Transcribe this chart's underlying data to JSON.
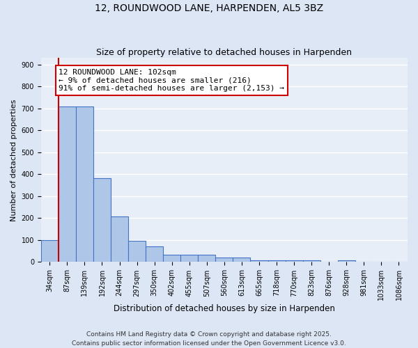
{
  "title1": "12, ROUNDWOOD LANE, HARPENDEN, AL5 3BZ",
  "title2": "Size of property relative to detached houses in Harpenden",
  "xlabel": "Distribution of detached houses by size in Harpenden",
  "ylabel": "Number of detached properties",
  "bar_labels": [
    "34sqm",
    "87sqm",
    "139sqm",
    "192sqm",
    "244sqm",
    "297sqm",
    "350sqm",
    "402sqm",
    "455sqm",
    "507sqm",
    "560sqm",
    "613sqm",
    "665sqm",
    "718sqm",
    "770sqm",
    "823sqm",
    "876sqm",
    "928sqm",
    "981sqm",
    "1033sqm",
    "1086sqm"
  ],
  "bar_values": [
    100,
    710,
    710,
    383,
    207,
    98,
    70,
    32,
    32,
    32,
    20,
    20,
    8,
    8,
    8,
    8,
    0,
    7,
    0,
    0,
    0
  ],
  "bar_color": "#aec6e8",
  "bar_edge_color": "#4472c4",
  "bar_edge_width": 0.8,
  "red_line_x": 0.5,
  "red_line_color": "#cc0000",
  "annotation_text": "12 ROUNDWOOD LANE: 102sqm\n← 9% of detached houses are smaller (216)\n91% of semi-detached houses are larger (2,153) →",
  "annotation_box_color": "#ffffff",
  "annotation_box_edge_color": "#cc0000",
  "annotation_fontsize": 8,
  "ylim": [
    0,
    930
  ],
  "yticks": [
    0,
    100,
    200,
    300,
    400,
    500,
    600,
    700,
    800,
    900
  ],
  "bg_color": "#e8eef8",
  "grid_color": "#ffffff",
  "footer_text": "Contains HM Land Registry data © Crown copyright and database right 2025.\nContains public sector information licensed under the Open Government Licence v3.0.",
  "title1_fontsize": 10,
  "title2_fontsize": 9,
  "xlabel_fontsize": 8.5,
  "ylabel_fontsize": 8,
  "tick_fontsize": 7,
  "footer_fontsize": 6.5
}
